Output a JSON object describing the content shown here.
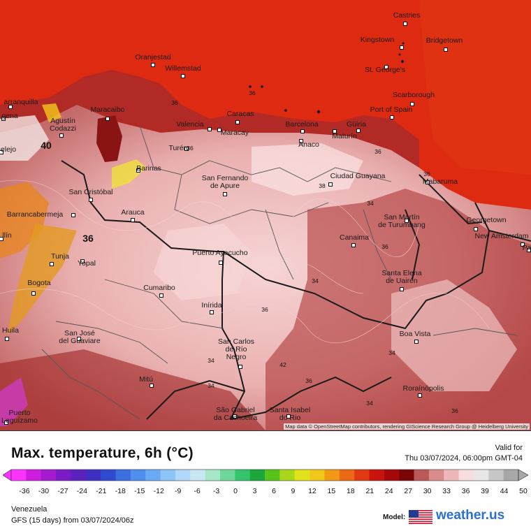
{
  "map": {
    "cities": [
      {
        "name": "Castries"
      },
      {
        "name": "Kingstown"
      },
      {
        "name": "Bridgetown"
      },
      {
        "name": "Oranjestad"
      },
      {
        "name": "Willemstad"
      },
      {
        "name": "St. George's"
      },
      {
        "name": "Scarborough"
      },
      {
        "name": "Port of Spain"
      },
      {
        "name": "arranquilla"
      },
      {
        "name": "Maracaibo"
      },
      {
        "name": "Caracas"
      },
      {
        "name": "Valencia"
      },
      {
        "name": "Maracay"
      },
      {
        "name": "Barcelona"
      },
      {
        "name": "Güiria"
      },
      {
        "name": "Maturín"
      },
      {
        "name": "Anaco"
      },
      {
        "name": "Agustín\nCodazzi"
      },
      {
        "name": "gena"
      },
      {
        "name": "Turén"
      },
      {
        "name": "Barinas"
      },
      {
        "name": "elejo"
      },
      {
        "name": "San Fernando\nde Apure"
      },
      {
        "name": "Ciudad Guayana"
      },
      {
        "name": "Mabaruma"
      },
      {
        "name": "San Cristóbal"
      },
      {
        "name": "Barrancabermeja"
      },
      {
        "name": "Arauca"
      },
      {
        "name": "San Martín\nde Turumbang"
      },
      {
        "name": "Georgetown"
      },
      {
        "name": "llín"
      },
      {
        "name": "Canaima"
      },
      {
        "name": "New Amsterdam"
      },
      {
        "name": "Pa"
      },
      {
        "name": "Puerto Ayacucho"
      },
      {
        "name": "Tunja"
      },
      {
        "name": "Yopal"
      },
      {
        "name": "Bogota"
      },
      {
        "name": "Santa Elena\nde Uairén"
      },
      {
        "name": "Cumaribo"
      },
      {
        "name": "Inírida"
      },
      {
        "name": "Huila"
      },
      {
        "name": "San José\ndel Guaviare"
      },
      {
        "name": "Boa Vista"
      },
      {
        "name": "San Carlos\nde Río\nNegro"
      },
      {
        "name": "Mitú"
      },
      {
        "name": "Roraínópolis"
      },
      {
        "name": "Puerto\nLeguízamo"
      },
      {
        "name": "São Gabriel\nda Cachoeira"
      },
      {
        "name": "Santa Isabel\ndo Rio"
      }
    ],
    "isotherm_labels": [
      "36",
      "36",
      "36",
      "38",
      "34",
      "36",
      "36",
      "36",
      "34",
      "36",
      "34",
      "34",
      "34",
      "34",
      "36",
      "42",
      "40",
      "36",
      "36"
    ],
    "attribution": "Map data © OpenStreetMap contributors, rendering GIScience Research Group @ Heidelberg University"
  },
  "legend": {
    "title": "Max. temperature, 6h (°C)",
    "valid_label": "Valid for",
    "valid_time": "Thu 03/07/2024, 06:00pm GMT-04",
    "ticks": [
      "-36",
      "-30",
      "-27",
      "-24",
      "-21",
      "-18",
      "-15",
      "-12",
      "-9",
      "-6",
      "-3",
      "0",
      "3",
      "6",
      "9",
      "12",
      "15",
      "18",
      "21",
      "24",
      "27",
      "30",
      "33",
      "36",
      "39",
      "44",
      "50"
    ],
    "colors": [
      "#ff33ff",
      "#d01ee0",
      "#a31ad0",
      "#7a1bc4",
      "#5a22bd",
      "#3f2fc0",
      "#2f4ad0",
      "#3a6ee0",
      "#4e8ff0",
      "#6aaaf5",
      "#8cc4f8",
      "#b0d8fb",
      "#c9e7f2",
      "#a6e6c8",
      "#6fd79a",
      "#35c46b",
      "#1aa83a",
      "#56c21a",
      "#a7d81a",
      "#e2e21a",
      "#f2c81a",
      "#f29a18",
      "#ec6a16",
      "#e03a12",
      "#c8140e",
      "#a40a0a",
      "#7c0606",
      "#b85a5a",
      "#d98a8a",
      "#eeb8b8",
      "#f8dede",
      "#e8e8e8",
      "#c8c8c8",
      "#a8a8a8"
    ]
  },
  "footer": {
    "region": "Venezuela",
    "model_run": "GFS (15 days) from 03/07/2024/06z",
    "model_label": "Model:",
    "brand": "weather.us"
  }
}
